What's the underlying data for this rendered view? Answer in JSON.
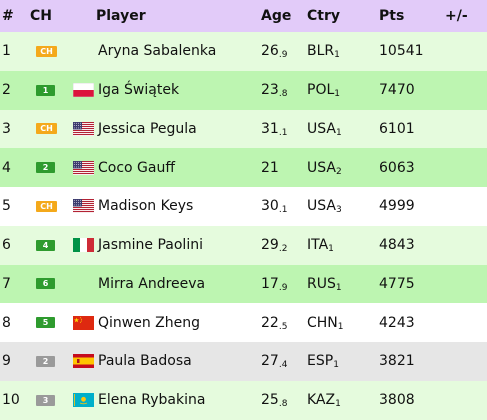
{
  "header": {
    "rank": "#",
    "ch": "CH",
    "player": "Player",
    "age": "Age",
    "country": "Ctry",
    "points": "Pts",
    "change": "+/-"
  },
  "colors": {
    "header_bg": "#e2cbf9",
    "row_light_green": "#e5fbdd",
    "row_green": "#bdf5b1",
    "row_white": "#ffffff",
    "row_grey": "#e6e6e6",
    "badge_ch": "#f4a91b",
    "badge_green": "#2e9b2e",
    "badge_grey": "#9a9a9a"
  },
  "rows": [
    {
      "rank": "1",
      "ch": "CH",
      "ch_style": "ch",
      "flag": "none",
      "player": "Aryna Sabalenka",
      "age": "26",
      "age_dec": ".9",
      "country": "BLR",
      "country_sub": "1",
      "points": "10541",
      "change": "",
      "row_style": "light_green"
    },
    {
      "rank": "2",
      "ch": "1",
      "ch_style": "green",
      "flag": "poland-flag-icon",
      "player": "Iga Świątek",
      "age": "23",
      "age_dec": ".8",
      "country": "POL",
      "country_sub": "1",
      "points": "7470",
      "change": "",
      "row_style": "green"
    },
    {
      "rank": "3",
      "ch": "CH",
      "ch_style": "ch",
      "flag": "usa-flag-icon",
      "player": "Jessica Pegula",
      "age": "31",
      "age_dec": ".1",
      "country": "USA",
      "country_sub": "1",
      "points": "6101",
      "change": "",
      "row_style": "light_green"
    },
    {
      "rank": "4",
      "ch": "2",
      "ch_style": "green",
      "flag": "usa-flag-icon",
      "player": "Coco Gauff",
      "age": "21",
      "age_dec": "",
      "country": "USA",
      "country_sub": "2",
      "points": "6063",
      "change": "",
      "row_style": "green"
    },
    {
      "rank": "5",
      "ch": "CH",
      "ch_style": "ch",
      "flag": "usa-flag-icon",
      "player": "Madison Keys",
      "age": "30",
      "age_dec": ".1",
      "country": "USA",
      "country_sub": "3",
      "points": "4999",
      "change": "",
      "row_style": "white"
    },
    {
      "rank": "6",
      "ch": "4",
      "ch_style": "green",
      "flag": "italy-flag-icon",
      "player": "Jasmine Paolini",
      "age": "29",
      "age_dec": ".2",
      "country": "ITA",
      "country_sub": "1",
      "points": "4843",
      "change": "",
      "row_style": "light_green"
    },
    {
      "rank": "7",
      "ch": "6",
      "ch_style": "green",
      "flag": "none",
      "player": "Mirra Andreeva",
      "age": "17",
      "age_dec": ".9",
      "country": "RUS",
      "country_sub": "1",
      "points": "4775",
      "change": "",
      "row_style": "green"
    },
    {
      "rank": "8",
      "ch": "5",
      "ch_style": "green",
      "flag": "china-flag-icon",
      "player": "Qinwen Zheng",
      "age": "22",
      "age_dec": ".5",
      "country": "CHN",
      "country_sub": "1",
      "points": "4243",
      "change": "",
      "row_style": "white"
    },
    {
      "rank": "9",
      "ch": "2",
      "ch_style": "grey",
      "flag": "spain-flag-icon",
      "player": "Paula Badosa",
      "age": "27",
      "age_dec": ".4",
      "country": "ESP",
      "country_sub": "1",
      "points": "3821",
      "change": "",
      "row_style": "grey"
    },
    {
      "rank": "10",
      "ch": "3",
      "ch_style": "grey",
      "flag": "kazakhstan-flag-icon",
      "player": "Elena Rybakina",
      "age": "25",
      "age_dec": ".8",
      "country": "KAZ",
      "country_sub": "1",
      "points": "3808",
      "change": "",
      "row_style": "light_green"
    }
  ]
}
